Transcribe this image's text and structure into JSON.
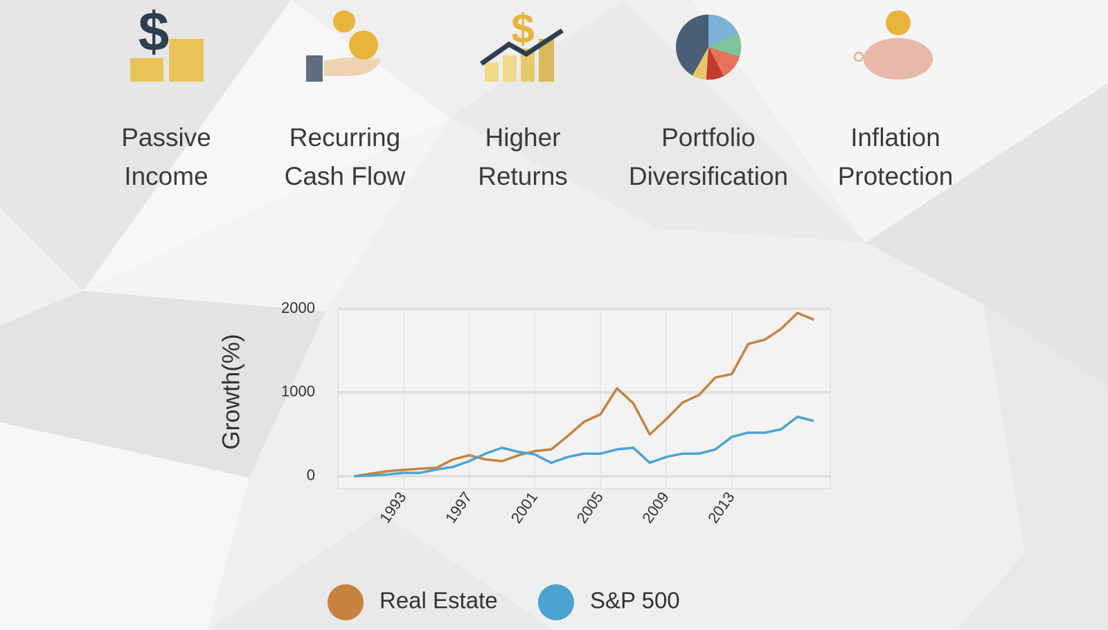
{
  "features": [
    [
      "Passive",
      "Income"
    ],
    [
      "Recurring",
      "Cash Flow"
    ],
    [
      "Higher",
      "Returns"
    ],
    [
      "Portfolio",
      "Diversification"
    ],
    [
      "Inflation",
      "Protection"
    ]
  ],
  "chart_data": {
    "type": "line",
    "ylabel": "Growth(%)",
    "x": [
      1990,
      1991,
      1992,
      1993,
      1994,
      1995,
      1996,
      1997,
      1998,
      1999,
      2000,
      2001,
      2002,
      2003,
      2004,
      2005,
      2006,
      2007,
      2008,
      2009,
      2010,
      2011,
      2012,
      2013,
      2014,
      2015,
      2016,
      2017,
      2018
    ],
    "series": [
      {
        "name": "Real Estate",
        "color": "#c8823f",
        "values": [
          0,
          30,
          60,
          75,
          90,
          100,
          200,
          250,
          200,
          180,
          250,
          300,
          320,
          480,
          650,
          740,
          1050,
          870,
          500,
          680,
          880,
          970,
          1180,
          1220,
          1580,
          1630,
          1760,
          1950,
          1870
        ]
      },
      {
        "name": "S&P 500",
        "color": "#4ba3d1",
        "values": [
          0,
          10,
          20,
          40,
          40,
          80,
          110,
          180,
          270,
          340,
          290,
          260,
          160,
          230,
          270,
          270,
          320,
          340,
          160,
          230,
          270,
          270,
          320,
          470,
          520,
          520,
          560,
          710,
          660
        ]
      }
    ],
    "xlim": [
      1989,
      2019
    ],
    "xticks": [
      1993,
      1997,
      2001,
      2005,
      2009,
      2013
    ],
    "ylim": [
      -150,
      2000
    ],
    "yticks": [
      0,
      1000,
      2000
    ],
    "grid": true,
    "legend": "bottom"
  }
}
